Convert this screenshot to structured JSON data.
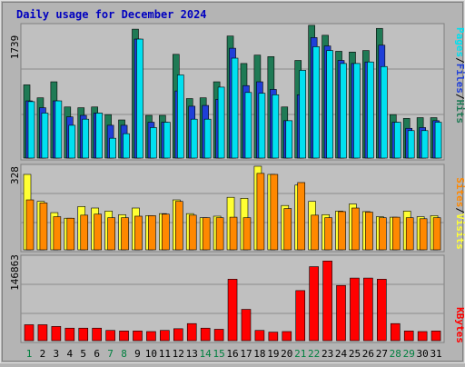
{
  "title": "Daily usage for December 2024",
  "colors": {
    "background": "#b4b4b4",
    "plot_bg": "#c0c0c0",
    "title": "#0000c0",
    "hits": "#1f7a55",
    "files": "#1f3fd8",
    "pages": "#00e0f0",
    "visits": "#ffff33",
    "sites": "#ff8800",
    "kbytes": "#ff0000",
    "weekday_label": "#000000",
    "weekend_label": "#00803f"
  },
  "y_axis_labels": {
    "top": "1739",
    "middle": "328",
    "bottom": "146863"
  },
  "legends": {
    "top": [
      {
        "text": "Pages",
        "color_key": "pages"
      },
      {
        "text": "/",
        "color_key": "weekday_label"
      },
      {
        "text": "Files",
        "color_key": "files"
      },
      {
        "text": "/",
        "color_key": "weekday_label"
      },
      {
        "text": "Hits",
        "color_key": "hits"
      }
    ],
    "middle": [
      {
        "text": "Sites",
        "color_key": "sites"
      },
      {
        "text": "/",
        "color_key": "weekday_label"
      },
      {
        "text": "Visits",
        "color_key": "visits"
      }
    ],
    "bottom": [
      {
        "text": "KBytes",
        "color_key": "kbytes"
      }
    ]
  },
  "chart_data": [
    {
      "type": "bar",
      "panel": "hits-files-pages",
      "y_axis_label": "1739",
      "ylim": [
        0,
        1739
      ],
      "grid": true,
      "categories": [
        "1",
        "2",
        "3",
        "4",
        "5",
        "6",
        "7",
        "8",
        "9",
        "10",
        "11",
        "12",
        "13",
        "14",
        "15",
        "16",
        "17",
        "18",
        "19",
        "20",
        "21",
        "22",
        "23",
        "24",
        "25",
        "26",
        "27",
        "28",
        "29",
        "30",
        "31"
      ],
      "series": [
        {
          "name": "Hits",
          "values": [
            960,
            790,
            1000,
            670,
            660,
            670,
            570,
            500,
            1690,
            560,
            560,
            1360,
            780,
            790,
            1000,
            1600,
            1240,
            1350,
            1330,
            670,
            1280,
            1740,
            1610,
            1400,
            1390,
            1410,
            1700,
            570,
            520,
            530,
            530
          ]
        },
        {
          "name": "Files",
          "values": [
            750,
            660,
            750,
            540,
            560,
            590,
            430,
            430,
            1560,
            470,
            470,
            880,
            680,
            690,
            770,
            1440,
            950,
            1000,
            900,
            490,
            830,
            1580,
            1470,
            1280,
            1240,
            1260,
            1480,
            470,
            390,
            400,
            490
          ]
        },
        {
          "name": "Pages",
          "values": [
            740,
            590,
            750,
            430,
            510,
            590,
            260,
            320,
            1560,
            400,
            470,
            1090,
            510,
            510,
            930,
            1310,
            860,
            850,
            830,
            490,
            1150,
            1460,
            1410,
            1240,
            1240,
            1260,
            1200,
            470,
            360,
            360,
            470
          ]
        }
      ]
    },
    {
      "type": "bar",
      "panel": "visits-sites",
      "y_axis_label": "328",
      "ylim": [
        0,
        328
      ],
      "grid": true,
      "categories": [
        "1",
        "2",
        "3",
        "4",
        "5",
        "6",
        "7",
        "8",
        "9",
        "10",
        "11",
        "12",
        "13",
        "14",
        "15",
        "16",
        "17",
        "18",
        "19",
        "20",
        "21",
        "22",
        "23",
        "24",
        "25",
        "26",
        "27",
        "28",
        "29",
        "30",
        "31"
      ],
      "series": [
        {
          "name": "Visits",
          "values": [
            296,
            190,
            146,
            124,
            170,
            164,
            152,
            138,
            164,
            134,
            142,
            196,
            142,
            126,
            132,
            206,
            202,
            328,
            296,
            174,
            254,
            190,
            138,
            152,
            180,
            150,
            130,
            128,
            152,
            130,
            134
          ]
        },
        {
          "name": "Sites",
          "values": [
            196,
            184,
            130,
            124,
            136,
            140,
            126,
            126,
            132,
            134,
            140,
            190,
            136,
            126,
            126,
            128,
            126,
            300,
            296,
            162,
            264,
            136,
            126,
            150,
            164,
            148,
            126,
            128,
            126,
            122,
            126
          ]
        }
      ]
    },
    {
      "type": "bar",
      "panel": "kbytes",
      "y_axis_label": "146863",
      "ylim": [
        0,
        146863
      ],
      "grid": true,
      "categories": [
        "1",
        "2",
        "3",
        "4",
        "5",
        "6",
        "7",
        "8",
        "9",
        "10",
        "11",
        "12",
        "13",
        "14",
        "15",
        "16",
        "17",
        "18",
        "19",
        "20",
        "21",
        "22",
        "23",
        "24",
        "25",
        "26",
        "27",
        "28",
        "29",
        "30",
        "31"
      ],
      "series": [
        {
          "name": "KBytes",
          "values": [
            28000,
            28000,
            25000,
            22000,
            22000,
            22000,
            18000,
            17000,
            17000,
            16000,
            18000,
            21000,
            30000,
            22000,
            20000,
            108000,
            55000,
            18000,
            15000,
            16000,
            88000,
            130000,
            140000,
            97000,
            110000,
            110000,
            108000,
            30000,
            17000,
            16000,
            17000
          ]
        }
      ]
    }
  ]
}
